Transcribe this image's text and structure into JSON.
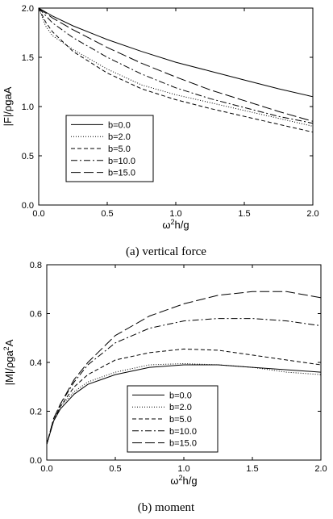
{
  "chart_data": [
    {
      "type": "line",
      "caption": "(a)  vertical  force",
      "ylabel": "|F|/ρgaA",
      "xlabel": {
        "base": "ω",
        "sup": "2",
        "rest": "h/g"
      },
      "xlim": [
        0,
        2
      ],
      "ylim": [
        0,
        2
      ],
      "xticks": [
        "0.0",
        "0.5",
        "1.0",
        "1.5",
        "2.0"
      ],
      "yticks": [
        "0.0",
        "0.5",
        "1.0",
        "1.5",
        "2.0"
      ],
      "legend_position": "lower-left",
      "series": [
        {
          "name": "b=0.0",
          "style": "solid",
          "x": [
            0,
            0.1,
            0.25,
            0.5,
            0.75,
            1.0,
            1.25,
            1.5,
            1.75,
            2.0
          ],
          "y": [
            2.0,
            1.92,
            1.82,
            1.68,
            1.56,
            1.45,
            1.36,
            1.27,
            1.18,
            1.1
          ]
        },
        {
          "name": "b=2.0",
          "style": "dotted",
          "x": [
            0,
            0.05,
            0.1,
            0.25,
            0.5,
            0.75,
            1.0,
            1.25,
            1.5,
            1.75,
            2.0
          ],
          "y": [
            2.0,
            1.82,
            1.72,
            1.58,
            1.38,
            1.22,
            1.12,
            1.04,
            0.96,
            0.88,
            0.8
          ]
        },
        {
          "name": "b=5.0",
          "style": "dashed",
          "x": [
            0,
            0.05,
            0.1,
            0.25,
            0.5,
            0.75,
            1.0,
            1.25,
            1.5,
            1.75,
            2.0
          ],
          "y": [
            2.0,
            1.86,
            1.76,
            1.56,
            1.34,
            1.18,
            1.07,
            0.98,
            0.9,
            0.82,
            0.74
          ]
        },
        {
          "name": "b=10.0",
          "style": "dashdot",
          "x": [
            0,
            0.1,
            0.25,
            0.5,
            0.75,
            1.0,
            1.25,
            1.5,
            1.75,
            2.0
          ],
          "y": [
            2.0,
            1.85,
            1.7,
            1.5,
            1.33,
            1.19,
            1.08,
            0.99,
            0.9,
            0.83
          ]
        },
        {
          "name": "b=15.0",
          "style": "longdash",
          "x": [
            0,
            0.1,
            0.25,
            0.5,
            0.75,
            1.0,
            1.25,
            1.5,
            1.75,
            2.0
          ],
          "y": [
            2.0,
            1.9,
            1.78,
            1.6,
            1.44,
            1.3,
            1.17,
            1.06,
            0.95,
            0.85
          ]
        }
      ]
    },
    {
      "type": "line",
      "caption": "(b)  moment",
      "ylabel": {
        "base": "|M|/ρga",
        "sup": "2",
        "rest": "A"
      },
      "xlabel": {
        "base": "ω",
        "sup": "2",
        "rest": "h/g"
      },
      "xlim": [
        0,
        2
      ],
      "ylim": [
        0,
        0.8
      ],
      "xticks": [
        "0.0",
        "0.5",
        "1.0",
        "1.5",
        "2.0"
      ],
      "yticks": [
        "0.0",
        "0.2",
        "0.4",
        "0.6",
        "0.8"
      ],
      "legend_position": "lower-center",
      "series": [
        {
          "name": "b=0.0",
          "style": "solid",
          "x": [
            0.0,
            0.05,
            0.1,
            0.2,
            0.3,
            0.5,
            0.75,
            1.0,
            1.25,
            1.5,
            1.75,
            2.0
          ],
          "y": [
            0.065,
            0.16,
            0.21,
            0.27,
            0.31,
            0.35,
            0.38,
            0.39,
            0.39,
            0.38,
            0.37,
            0.36
          ]
        },
        {
          "name": "b=2.0",
          "style": "dotted",
          "x": [
            0.0,
            0.05,
            0.1,
            0.2,
            0.3,
            0.5,
            0.75,
            1.0,
            1.25,
            1.5,
            1.75,
            2.0
          ],
          "y": [
            0.065,
            0.16,
            0.22,
            0.28,
            0.32,
            0.36,
            0.39,
            0.395,
            0.39,
            0.38,
            0.36,
            0.35
          ]
        },
        {
          "name": "b=5.0",
          "style": "dashed",
          "x": [
            0.0,
            0.05,
            0.1,
            0.2,
            0.3,
            0.5,
            0.75,
            1.0,
            1.25,
            1.5,
            1.75,
            2.0
          ],
          "y": [
            0.065,
            0.16,
            0.22,
            0.3,
            0.35,
            0.41,
            0.44,
            0.455,
            0.45,
            0.43,
            0.41,
            0.39
          ]
        },
        {
          "name": "b=10.0",
          "style": "dashdot",
          "x": [
            0.0,
            0.05,
            0.1,
            0.2,
            0.3,
            0.5,
            0.75,
            1.0,
            1.25,
            1.5,
            1.75,
            2.0
          ],
          "y": [
            0.065,
            0.17,
            0.23,
            0.32,
            0.39,
            0.48,
            0.54,
            0.57,
            0.58,
            0.58,
            0.57,
            0.55
          ]
        },
        {
          "name": "b=15.0",
          "style": "longdash",
          "x": [
            0.0,
            0.05,
            0.1,
            0.2,
            0.3,
            0.5,
            0.75,
            1.0,
            1.25,
            1.5,
            1.75,
            2.0
          ],
          "y": [
            0.065,
            0.17,
            0.23,
            0.33,
            0.4,
            0.51,
            0.59,
            0.64,
            0.675,
            0.69,
            0.69,
            0.665
          ]
        }
      ]
    }
  ]
}
